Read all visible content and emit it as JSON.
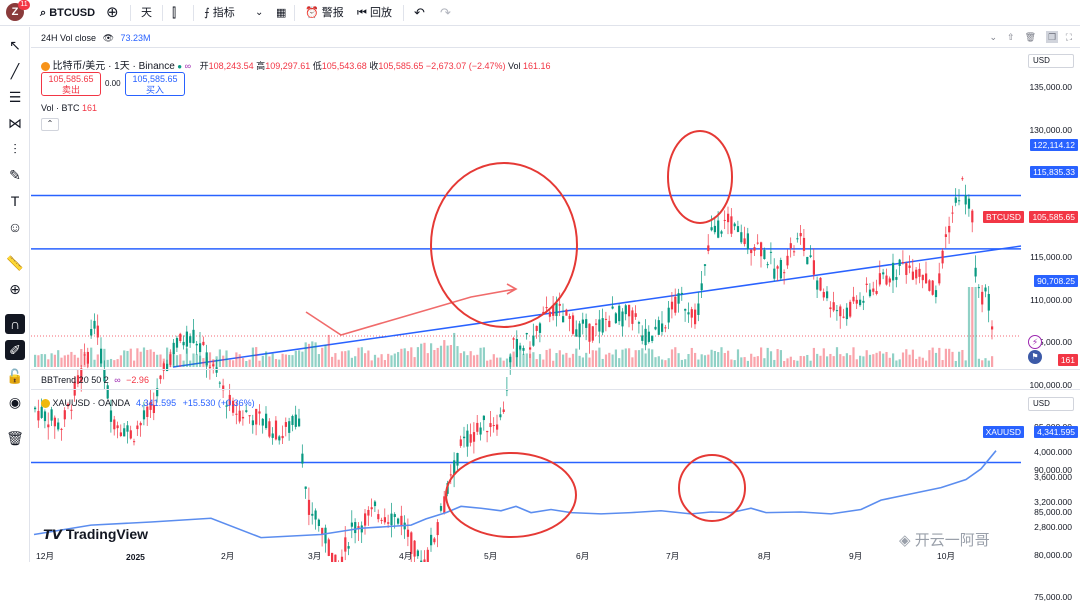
{
  "topbar": {
    "avatar": "Z",
    "badge": "11",
    "symbol": "BTCUSD",
    "interval": "天",
    "indicators": "指标",
    "alerts": "警报",
    "replay": "回放"
  },
  "pane1": {
    "vol_close_label": "24H Vol close",
    "vol_close_value": "73.23M",
    "title": "比特币/美元 · 1天 · Binance",
    "ohlc": {
      "o_label": "开",
      "o": "108,243.54",
      "h_label": "高",
      "h": "109,297.61",
      "l_label": "低",
      "l": "105,543.68",
      "c_label": "收",
      "c": "105,585.65",
      "chg": "−2,673.07 (−2.47%)",
      "vol_label": "Vol",
      "vol": "161.16"
    },
    "sell_price": "105,585.65",
    "sell_label": "卖出",
    "spread": "0.00",
    "buy_price": "105,585.65",
    "buy_label": "买入",
    "vol_legend": "Vol · BTC",
    "vol_legend_val": "161",
    "currency": "USD",
    "axis": [
      "135,000.00",
      "130,000.00",
      "125,000.00",
      "120,000.00",
      "115,000.00",
      "110,000.00",
      "105,000.00",
      "100,000.00",
      "95,000.00",
      "90,000.00",
      "85,000.00",
      "80,000.00",
      "75,000.00"
    ],
    "tags": {
      "l1": "122,114.12",
      "l2": "115,835.33",
      "sym": "BTCUSD",
      "price": "105,585.65",
      "l3": "90,708.25",
      "vol": "161"
    }
  },
  "pane2": {
    "indicator": "BBTrend 20 50 2",
    "indicator_val": "−2.96",
    "symbol_line": "XAUUSD · OANDA",
    "price": "4,341.595",
    "chg": "+15.530 (+0.36%)",
    "currency": "USD",
    "axis": [
      "4,000.000",
      "3,600.000",
      "3,200.000",
      "2,800.000"
    ],
    "tag_sym": "XAUUSD",
    "tag_price": "4,341.595"
  },
  "time_axis": [
    "12月",
    "2025",
    "2月",
    "3月",
    "4月",
    "5月",
    "6月",
    "7月",
    "8月",
    "9月",
    "10月"
  ],
  "branding": {
    "logo": "TradingView",
    "watermark": "开云一阿哥"
  },
  "colors": {
    "up": "#089981",
    "down": "#f23645",
    "line": "#2962ff",
    "gold_line": "#5b8def",
    "circle": "#e53935"
  }
}
